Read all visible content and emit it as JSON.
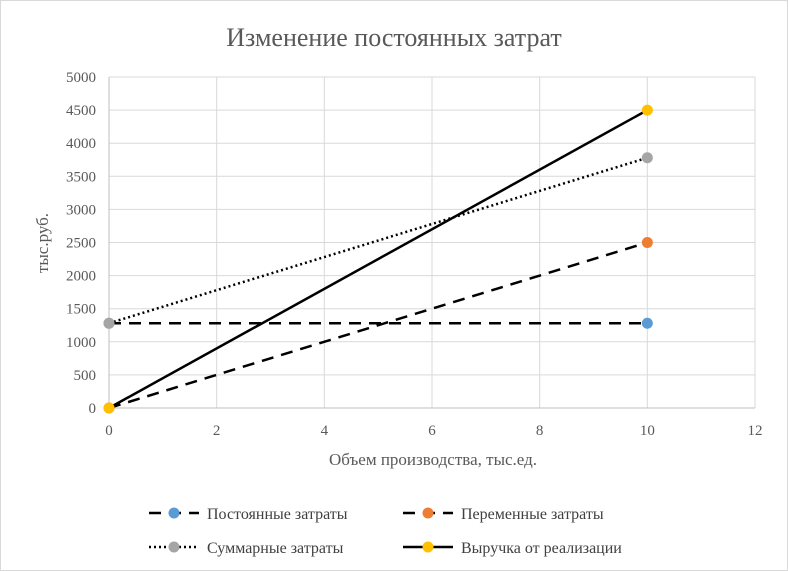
{
  "chart_data": {
    "type": "scatter",
    "title": "Изменение постоянных затрат",
    "xlabel": "Объем производства, тыс.ед.",
    "ylabel": "тыс.руб.",
    "xlim": [
      0,
      12
    ],
    "ylim": [
      0,
      5000
    ],
    "x_ticks": [
      "0",
      "2",
      "4",
      "6",
      "8",
      "10",
      "12"
    ],
    "y_ticks": [
      "0",
      "500",
      "1000",
      "1500",
      "2000",
      "2500",
      "3000",
      "3500",
      "4000",
      "4500",
      "5000"
    ],
    "grid": true,
    "legend_position": "bottom",
    "series": [
      {
        "name": "Постоянные затраты",
        "x": [
          0,
          10
        ],
        "y": [
          1280,
          1280
        ],
        "line_style": "dashed",
        "marker_color": "#5b9bd5"
      },
      {
        "name": "Переменные затраты",
        "x": [
          0,
          10
        ],
        "y": [
          0,
          2500
        ],
        "line_style": "dashed",
        "marker_color": "#ed7d31"
      },
      {
        "name": "Суммарные затраты",
        "x": [
          0,
          10
        ],
        "y": [
          1280,
          3780
        ],
        "line_style": "dotted",
        "marker_color": "#a5a5a5"
      },
      {
        "name": "Выручка от реализации",
        "x": [
          0,
          10
        ],
        "y": [
          0,
          4500
        ],
        "line_style": "solid",
        "marker_color": "#ffc000"
      }
    ]
  }
}
